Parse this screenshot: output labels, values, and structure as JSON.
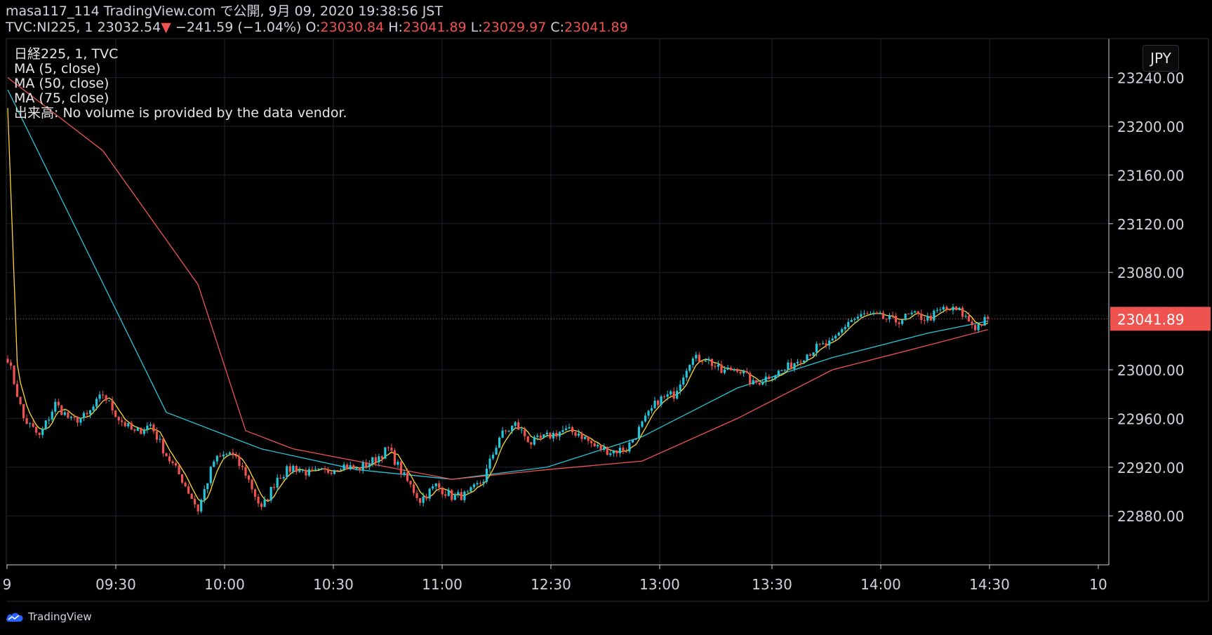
{
  "header": {
    "line1": "masa117_114 TradingView.com で公開, 9月 09, 2020 19:38:56 JST",
    "symbol": "TVC:NI225, 1",
    "last": "23032.54",
    "down_arrow": "▼",
    "change": "−241.59 (−1.04%)",
    "o_label": "O:",
    "o_value": "23030.84",
    "h_label": "H:",
    "h_value": "23041.89",
    "l_label": "L:",
    "l_value": "23029.97",
    "c_label": "C:",
    "c_value": "23041.89"
  },
  "legend": {
    "line1": "日経225, 1, TVC",
    "line2": "MA (5, close)",
    "line3": "MA (50, close)",
    "line4": "MA (75, close)",
    "line5": "出来高: No volume is provided by the data vendor."
  },
  "currency_button": "JPY",
  "branding": "TradingView",
  "colors": {
    "background": "#000000",
    "grid": "#1e222d",
    "up": "#26c6da",
    "down": "#ef5350",
    "ma5": "#fdd835",
    "ma50": "#26c6da",
    "ma75": "#ef5350",
    "axis_text": "#d1d4dc",
    "price_label_bg": "#ef5350"
  },
  "chart_data": {
    "type": "candlestick",
    "title": "日経225, 1, TVC",
    "ylim": [
      22850,
      23250
    ],
    "y_ticks": [
      {
        "value": 23240,
        "label": "23240.00"
      },
      {
        "value": 23200,
        "label": "23200.00"
      },
      {
        "value": 23160,
        "label": "23160.00"
      },
      {
        "value": 23120,
        "label": "23120.00"
      },
      {
        "value": 23080,
        "label": "23080.00"
      },
      {
        "value": 23000,
        "label": "23000.00"
      },
      {
        "value": 22960,
        "label": "22960.00"
      },
      {
        "value": 22920,
        "label": "22920.00"
      },
      {
        "value": 22880,
        "label": "22880.00"
      }
    ],
    "x_ticks": [
      "9",
      "09:30",
      "10:00",
      "10:30",
      "11:00",
      "12:30",
      "13:00",
      "13:30",
      "14:00",
      "14:30",
      "10"
    ],
    "last_price": 23041.89,
    "last_price_label": "23041.89",
    "close_anchors": [
      {
        "t": 0,
        "v": 23010
      },
      {
        "t": 5,
        "v": 22960
      },
      {
        "t": 10,
        "v": 22945
      },
      {
        "t": 15,
        "v": 22972
      },
      {
        "t": 20,
        "v": 22958
      },
      {
        "t": 25,
        "v": 22962
      },
      {
        "t": 30,
        "v": 22980
      },
      {
        "t": 35,
        "v": 22960
      },
      {
        "t": 40,
        "v": 22948
      },
      {
        "t": 45,
        "v": 22955
      },
      {
        "t": 50,
        "v": 22930
      },
      {
        "t": 55,
        "v": 22910
      },
      {
        "t": 60,
        "v": 22885
      },
      {
        "t": 65,
        "v": 22925
      },
      {
        "t": 70,
        "v": 22932
      },
      {
        "t": 75,
        "v": 22915
      },
      {
        "t": 80,
        "v": 22885
      },
      {
        "t": 85,
        "v": 22912
      },
      {
        "t": 90,
        "v": 22920
      },
      {
        "t": 95,
        "v": 22915
      },
      {
        "t": 100,
        "v": 22916
      },
      {
        "t": 105,
        "v": 22922
      },
      {
        "t": 110,
        "v": 22918
      },
      {
        "t": 115,
        "v": 22925
      },
      {
        "t": 120,
        "v": 22935
      },
      {
        "t": 125,
        "v": 22912
      },
      {
        "t": 130,
        "v": 22893
      },
      {
        "t": 135,
        "v": 22905
      },
      {
        "t": 140,
        "v": 22896
      },
      {
        "t": 145,
        "v": 22897
      },
      {
        "t": 150,
        "v": 22910
      },
      {
        "t": 155,
        "v": 22945
      },
      {
        "t": 160,
        "v": 22955
      },
      {
        "t": 165,
        "v": 22940
      },
      {
        "t": 170,
        "v": 22945
      },
      {
        "t": 175,
        "v": 22950
      },
      {
        "t": 180,
        "v": 22948
      },
      {
        "t": 185,
        "v": 22937
      },
      {
        "t": 190,
        "v": 22933
      },
      {
        "t": 195,
        "v": 22935
      },
      {
        "t": 200,
        "v": 22955
      },
      {
        "t": 205,
        "v": 22975
      },
      {
        "t": 210,
        "v": 22980
      },
      {
        "t": 215,
        "v": 23008
      },
      {
        "t": 220,
        "v": 23010
      },
      {
        "t": 225,
        "v": 22998
      },
      {
        "t": 230,
        "v": 23002
      },
      {
        "t": 235,
        "v": 22988
      },
      {
        "t": 240,
        "v": 22995
      },
      {
        "t": 245,
        "v": 23000
      },
      {
        "t": 250,
        "v": 23010
      },
      {
        "t": 255,
        "v": 23018
      },
      {
        "t": 260,
        "v": 23022
      },
      {
        "t": 265,
        "v": 23040
      },
      {
        "t": 270,
        "v": 23045
      },
      {
        "t": 275,
        "v": 23043
      },
      {
        "t": 280,
        "v": 23040
      },
      {
        "t": 285,
        "v": 23045
      },
      {
        "t": 290,
        "v": 23042
      },
      {
        "t": 295,
        "v": 23050
      },
      {
        "t": 300,
        "v": 23048
      },
      {
        "t": 305,
        "v": 23035
      },
      {
        "t": 309,
        "v": 23041.89
      }
    ],
    "ma5_start": [
      23215,
      23005
    ],
    "ma50_points": [
      {
        "t": 0,
        "v": 23230
      },
      {
        "t": 50,
        "v": 22965
      },
      {
        "t": 80,
        "v": 22935
      },
      {
        "t": 110,
        "v": 22918
      },
      {
        "t": 140,
        "v": 22910
      },
      {
        "t": 170,
        "v": 22920
      },
      {
        "t": 200,
        "v": 22945
      },
      {
        "t": 230,
        "v": 22985
      },
      {
        "t": 260,
        "v": 23010
      },
      {
        "t": 290,
        "v": 23030
      },
      {
        "t": 309,
        "v": 23040
      }
    ],
    "ma75_points": [
      {
        "t": 0,
        "v": 23240
      },
      {
        "t": 30,
        "v": 23180
      },
      {
        "t": 60,
        "v": 23070
      },
      {
        "t": 75,
        "v": 22950
      },
      {
        "t": 90,
        "v": 22935
      },
      {
        "t": 110,
        "v": 22925
      },
      {
        "t": 140,
        "v": 22910
      },
      {
        "t": 170,
        "v": 22918
      },
      {
        "t": 200,
        "v": 22925
      },
      {
        "t": 230,
        "v": 22960
      },
      {
        "t": 260,
        "v": 23000
      },
      {
        "t": 290,
        "v": 23020
      },
      {
        "t": 309,
        "v": 23033
      }
    ]
  }
}
